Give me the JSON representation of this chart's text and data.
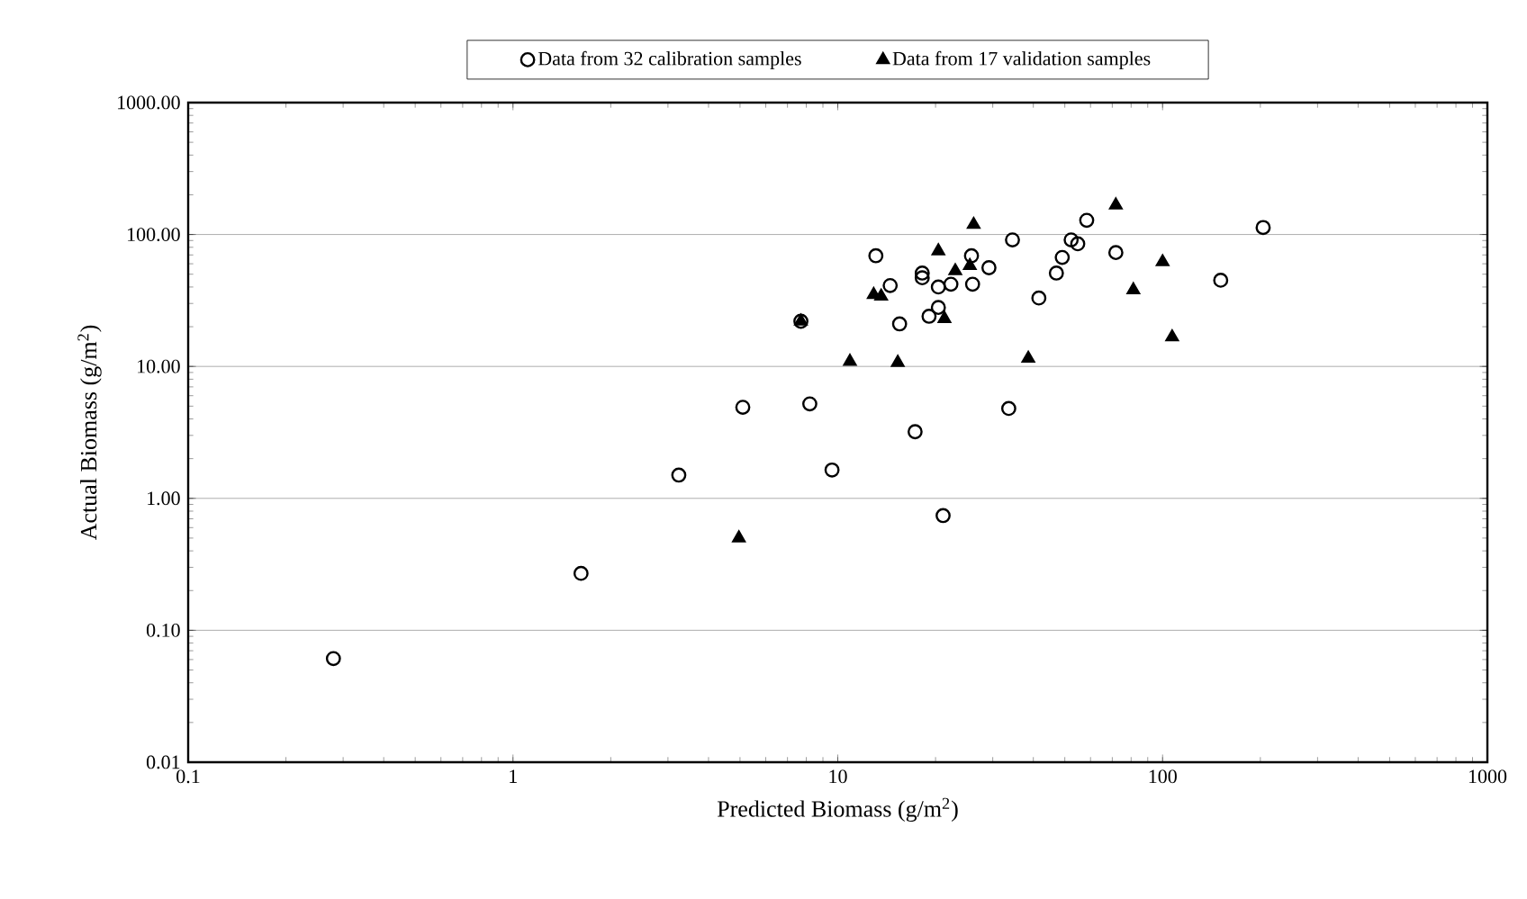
{
  "chart_data": {
    "type": "scatter",
    "xlabel": "Predicted Biomass (g/m$^{2}$)",
    "ylabel": "Actual Biomass (g/m$^{2}$)",
    "log": "xy",
    "grid": "y",
    "legend": "top",
    "xlim": [
      0.1,
      1000
    ],
    "ylim": [
      0.01,
      1000
    ],
    "xticks": [
      0.1,
      1,
      10,
      100,
      1000
    ],
    "yticks": [
      {
        "value": 0.01,
        "label": "0.01"
      },
      {
        "value": 0.1,
        "label": "0.10"
      },
      {
        "value": 1,
        "label": "1.00"
      },
      {
        "value": 10,
        "label": "10.00"
      },
      {
        "value": 100,
        "label": "100.00"
      },
      {
        "value": 1000,
        "label": "1000.00"
      }
    ],
    "series": [
      {
        "name": "Data from 32 calibration samples",
        "color": "#000000",
        "marker": "circle",
        "x": [
          0.28,
          1.62,
          3.24,
          5.1,
          7.7,
          8.2,
          9.6,
          13.1,
          14.5,
          15.5,
          17.3,
          18.2,
          18.2,
          19.1,
          20.4,
          20.4,
          21.1,
          22.3,
          25.8,
          26.0,
          29.2,
          33.6,
          34.5,
          41.6,
          47.1,
          49.1,
          52.3,
          54.8,
          58.4,
          71.8,
          151,
          204
        ],
        "values": [
          0.061,
          0.27,
          1.5,
          4.9,
          22,
          5.2,
          1.64,
          69,
          41,
          21,
          3.2,
          51,
          47,
          24,
          40,
          28,
          0.74,
          42,
          69,
          42,
          56,
          4.8,
          91,
          33,
          51,
          67,
          91,
          85,
          128,
          73,
          45,
          113
        ]
      },
      {
        "name": "Data from 17 validation samples",
        "color": "#000000",
        "marker": "triangle",
        "x": [
          4.96,
          7.7,
          10.9,
          12.9,
          13.6,
          15.3,
          20.4,
          21.3,
          23.0,
          25.5,
          26.2,
          38.6,
          71.8,
          81.3,
          100,
          107
        ],
        "values": [
          0.5,
          22,
          10.9,
          35,
          34,
          10.7,
          75,
          23,
          53,
          58,
          119,
          11.5,
          167,
          38,
          62,
          16.7
        ]
      }
    ]
  }
}
